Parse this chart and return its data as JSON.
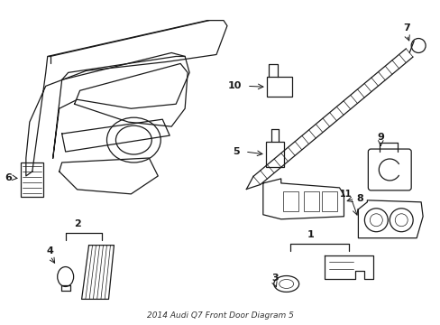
{
  "title": "2014 Audi Q7 Front Door Diagram 5",
  "background_color": "#ffffff",
  "line_color": "#1a1a1a",
  "fig_width": 4.89,
  "fig_height": 3.6,
  "dpi": 100,
  "font_size_label": 8,
  "font_size_num": 7.5,
  "lw_main": 0.9,
  "lw_thin": 0.5
}
